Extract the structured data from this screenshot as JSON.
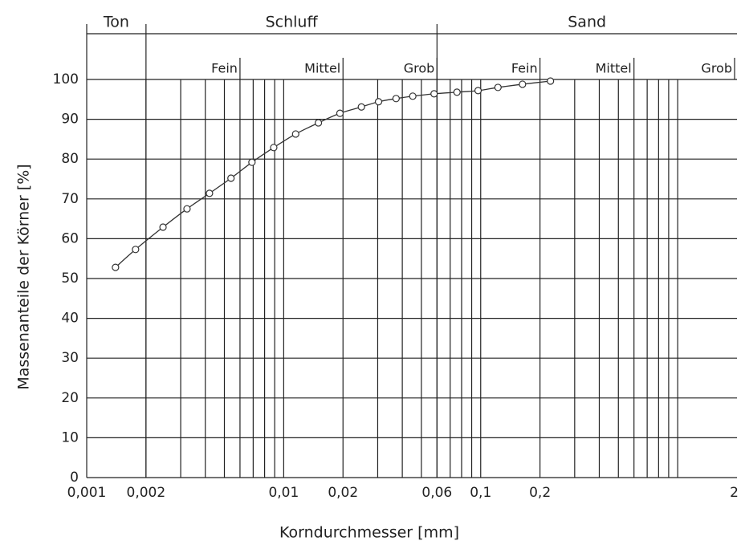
{
  "chart_data": {
    "type": "line",
    "xlabel": "Korndurchmesser [mm]",
    "ylabel": "Massenanteile der Körner [%]",
    "x": [
      0.0014,
      0.00177,
      0.00244,
      0.00323,
      0.0042,
      0.0054,
      0.0069,
      0.0089,
      0.0115,
      0.015,
      0.0193,
      0.0248,
      0.0303,
      0.0372,
      0.0452,
      0.058,
      0.0758,
      0.097,
      0.1224,
      0.163,
      0.226
    ],
    "values": [
      52.8,
      57.3,
      62.9,
      67.5,
      71.4,
      75.2,
      79.2,
      82.9,
      86.3,
      89.1,
      91.5,
      93.1,
      94.4,
      95.2,
      95.8,
      96.4,
      96.8,
      97.2,
      98,
      98.8,
      99.6
    ],
    "color": "#333333",
    "xlog": true,
    "xlim": [
      0.001,
      2
    ],
    "ylim": [
      0,
      100
    ],
    "xticks": [
      {
        "value": 0.001,
        "label": "0,001"
      },
      {
        "value": 0.002,
        "label": "0,002"
      },
      {
        "value": 0.01,
        "label": "0,01"
      },
      {
        "value": 0.02,
        "label": "0,02"
      },
      {
        "value": 0.06,
        "label": "0,06"
      },
      {
        "value": 0.1,
        "label": "0,1"
      },
      {
        "value": 0.2,
        "label": "0,2"
      },
      2
    ],
    "yticks": [
      0,
      10,
      20,
      30,
      40,
      50,
      60,
      70,
      80,
      90,
      100
    ],
    "xgrid": [
      0.002,
      0.003,
      0.004,
      0.005,
      0.006,
      0.007,
      0.008,
      0.009,
      0.01,
      0.02,
      0.03,
      0.04,
      0.05,
      0.06,
      0.07,
      0.08,
      0.09,
      0.1,
      0.2,
      0.3,
      0.4,
      0.5,
      0.6,
      0.7,
      0.8,
      0.9,
      1
    ],
    "grid": true,
    "classes": [
      {
        "label": "Ton",
        "to": 0.002
      },
      {
        "label": "Schluff",
        "to": 0.06
      },
      {
        "label": "Sand",
        "to": 2
      }
    ],
    "subclasses": [
      {
        "label": "Fein",
        "to": 0.006
      },
      {
        "label": "Mittel",
        "to": 0.02
      },
      {
        "label": "Grob",
        "to": 0.06
      },
      {
        "label": "Fein",
        "to": 0.2
      },
      {
        "label": "Mittel",
        "to": 0.6
      },
      {
        "label": "Grob",
        "to": 2
      }
    ]
  }
}
